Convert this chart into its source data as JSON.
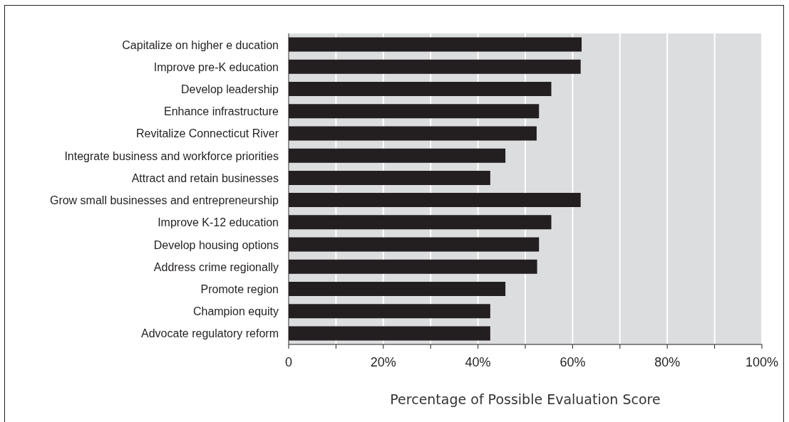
{
  "chart_data": {
    "type": "bar",
    "orientation": "horizontal",
    "xlabel": "Percentage of Possible Evaluation Score",
    "categories": [
      "Capitalize on higher e ducation",
      "Improve pre-K education",
      "Develop leadership",
      "Enhance infrastructure",
      "Revitalize Connecticut River",
      "Integrate business and workforce priorities",
      "Attract and retain businesses",
      "Grow small businesses and entrepreneurship",
      "Improve K-12 education",
      "Develop housing options",
      "Address crime regionally",
      "Promote region",
      "Champion equity",
      "Advocate regulatory reform"
    ],
    "values": [
      61.9,
      61.7,
      55.5,
      52.9,
      52.4,
      45.8,
      42.6,
      61.7,
      55.5,
      52.9,
      52.5,
      45.8,
      42.6,
      42.6
    ],
    "color": "#231f20",
    "xlim": [
      0,
      100
    ],
    "xticks": [
      {
        "value": 0,
        "label": "0"
      },
      {
        "value": 10,
        "label": null
      },
      {
        "value": 20,
        "label": "20%"
      },
      {
        "value": 30,
        "label": null
      },
      {
        "value": 40,
        "label": "40%"
      },
      {
        "value": 50,
        "label": null
      },
      {
        "value": 60,
        "label": "60%"
      },
      {
        "value": 70,
        "label": null
      },
      {
        "value": 80,
        "label": "80%"
      },
      {
        "value": 90,
        "label": null
      },
      {
        "value": 100,
        "label": "100%"
      }
    ],
    "grid": "x"
  }
}
